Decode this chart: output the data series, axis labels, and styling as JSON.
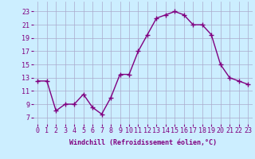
{
  "x": [
    0,
    1,
    2,
    3,
    4,
    5,
    6,
    7,
    8,
    9,
    10,
    11,
    12,
    13,
    14,
    15,
    16,
    17,
    18,
    19,
    20,
    21,
    22,
    23
  ],
  "y": [
    12.5,
    12.5,
    8.0,
    9.0,
    9.0,
    10.5,
    8.5,
    7.5,
    10.0,
    13.5,
    13.5,
    17.0,
    19.5,
    22.0,
    22.5,
    23.0,
    22.5,
    21.0,
    21.0,
    19.5,
    15.0,
    13.0,
    12.5,
    12.0
  ],
  "line_color": "#800080",
  "marker": "+",
  "marker_size": 4,
  "line_width": 1.0,
  "bg_color": "#cceeff",
  "grid_color": "#aaaacc",
  "xlabel": "Windchill (Refroidissement éolien,°C)",
  "xlabel_color": "#800080",
  "xlabel_fontsize": 6.0,
  "ylabel_ticks": [
    7,
    9,
    11,
    13,
    15,
    17,
    19,
    21,
    23
  ],
  "ylim": [
    6.0,
    24.5
  ],
  "xlim": [
    -0.5,
    23.5
  ],
  "tick_fontsize": 6.0,
  "tick_color": "#800080"
}
